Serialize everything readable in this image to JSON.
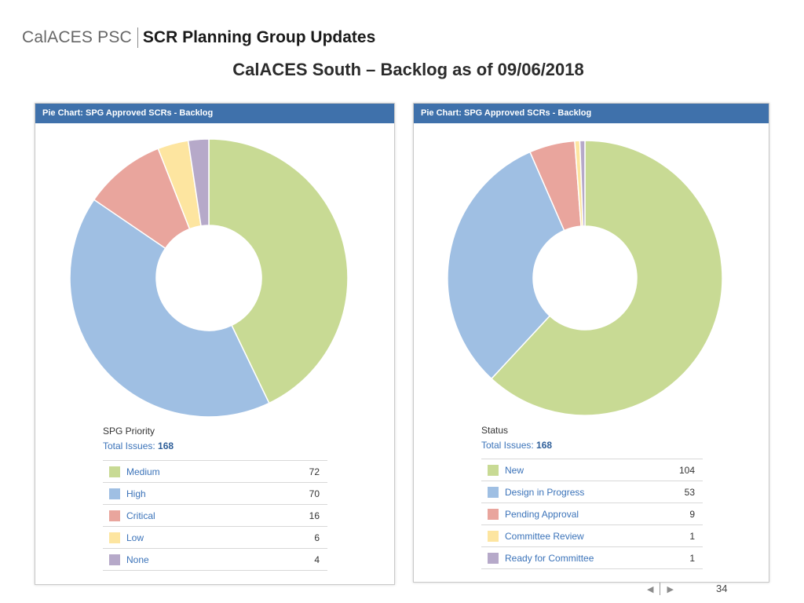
{
  "header": {
    "brand": "CalACES PSC",
    "title": "SCR Planning Group Updates"
  },
  "subtitle": "CalACES South – Backlog as of 09/06/2018",
  "chart_data": [
    {
      "type": "pie",
      "donut": true,
      "title": "Pie Chart: SPG Approved SCRs - Backlog",
      "field": "SPG Priority",
      "total_label": "Total Issues:",
      "total": "168",
      "categories": [
        "Medium",
        "High",
        "Critical",
        "Low",
        "None"
      ],
      "values": [
        72,
        70,
        16,
        6,
        4
      ],
      "colors": [
        "#c8da94",
        "#9fbfe3",
        "#e9a59d",
        "#fde5a0",
        "#b6a9c9"
      ]
    },
    {
      "type": "pie",
      "donut": true,
      "title": "Pie Chart: SPG Approved SCRs - Backlog",
      "field": "Status",
      "total_label": "Total Issues:",
      "total": "168",
      "categories": [
        "New",
        "Design in Progress",
        "Pending Approval",
        "Committee Review",
        "Ready for Committee"
      ],
      "values": [
        104,
        53,
        9,
        1,
        1
      ],
      "colors": [
        "#c8da94",
        "#9fbfe3",
        "#e9a59d",
        "#fde5a0",
        "#b6a9c9"
      ]
    }
  ],
  "footer": {
    "prev_icon": "◀",
    "next_icon": "▶",
    "page": "34"
  }
}
